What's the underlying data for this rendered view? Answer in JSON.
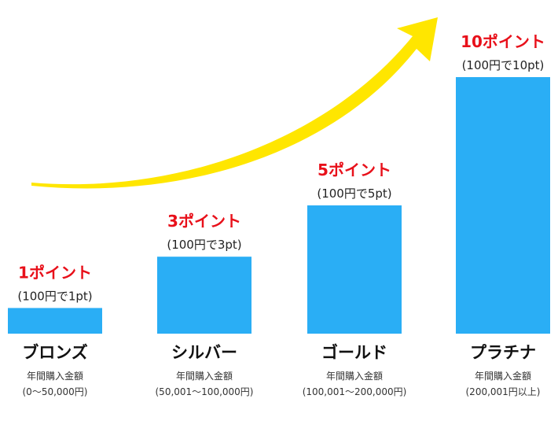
{
  "colors": {
    "bar": "#2aaef5",
    "arrow": "#ffe600",
    "points_text": "#e8101a"
  },
  "chart_data": {
    "type": "bar",
    "categories": [
      "ブロンズ",
      "シルバー",
      "ゴールド",
      "プラチナ"
    ],
    "values": [
      1,
      3,
      5,
      10
    ],
    "value_unit": "pt / 100円",
    "ylim": [
      0,
      10
    ],
    "grid": false,
    "axes_visible": false,
    "data_labels": [
      "1ポイント",
      "3ポイント",
      "5ポイント",
      "10ポイント"
    ],
    "rate_labels": [
      "(100円で1pt)",
      "(100円で3pt)",
      "(100円で5pt)",
      "(100円で10pt)"
    ],
    "category_captions": [
      "年間購入金額",
      "年間購入金額",
      "年間購入金額",
      "年間購入金額"
    ],
    "category_ranges": [
      "(0〜50,000円)",
      "(50,001〜100,000円)",
      "(100,001〜200,000円)",
      "(200,001円以上)"
    ],
    "annotation": "yellow-upward-growth-arrow"
  }
}
